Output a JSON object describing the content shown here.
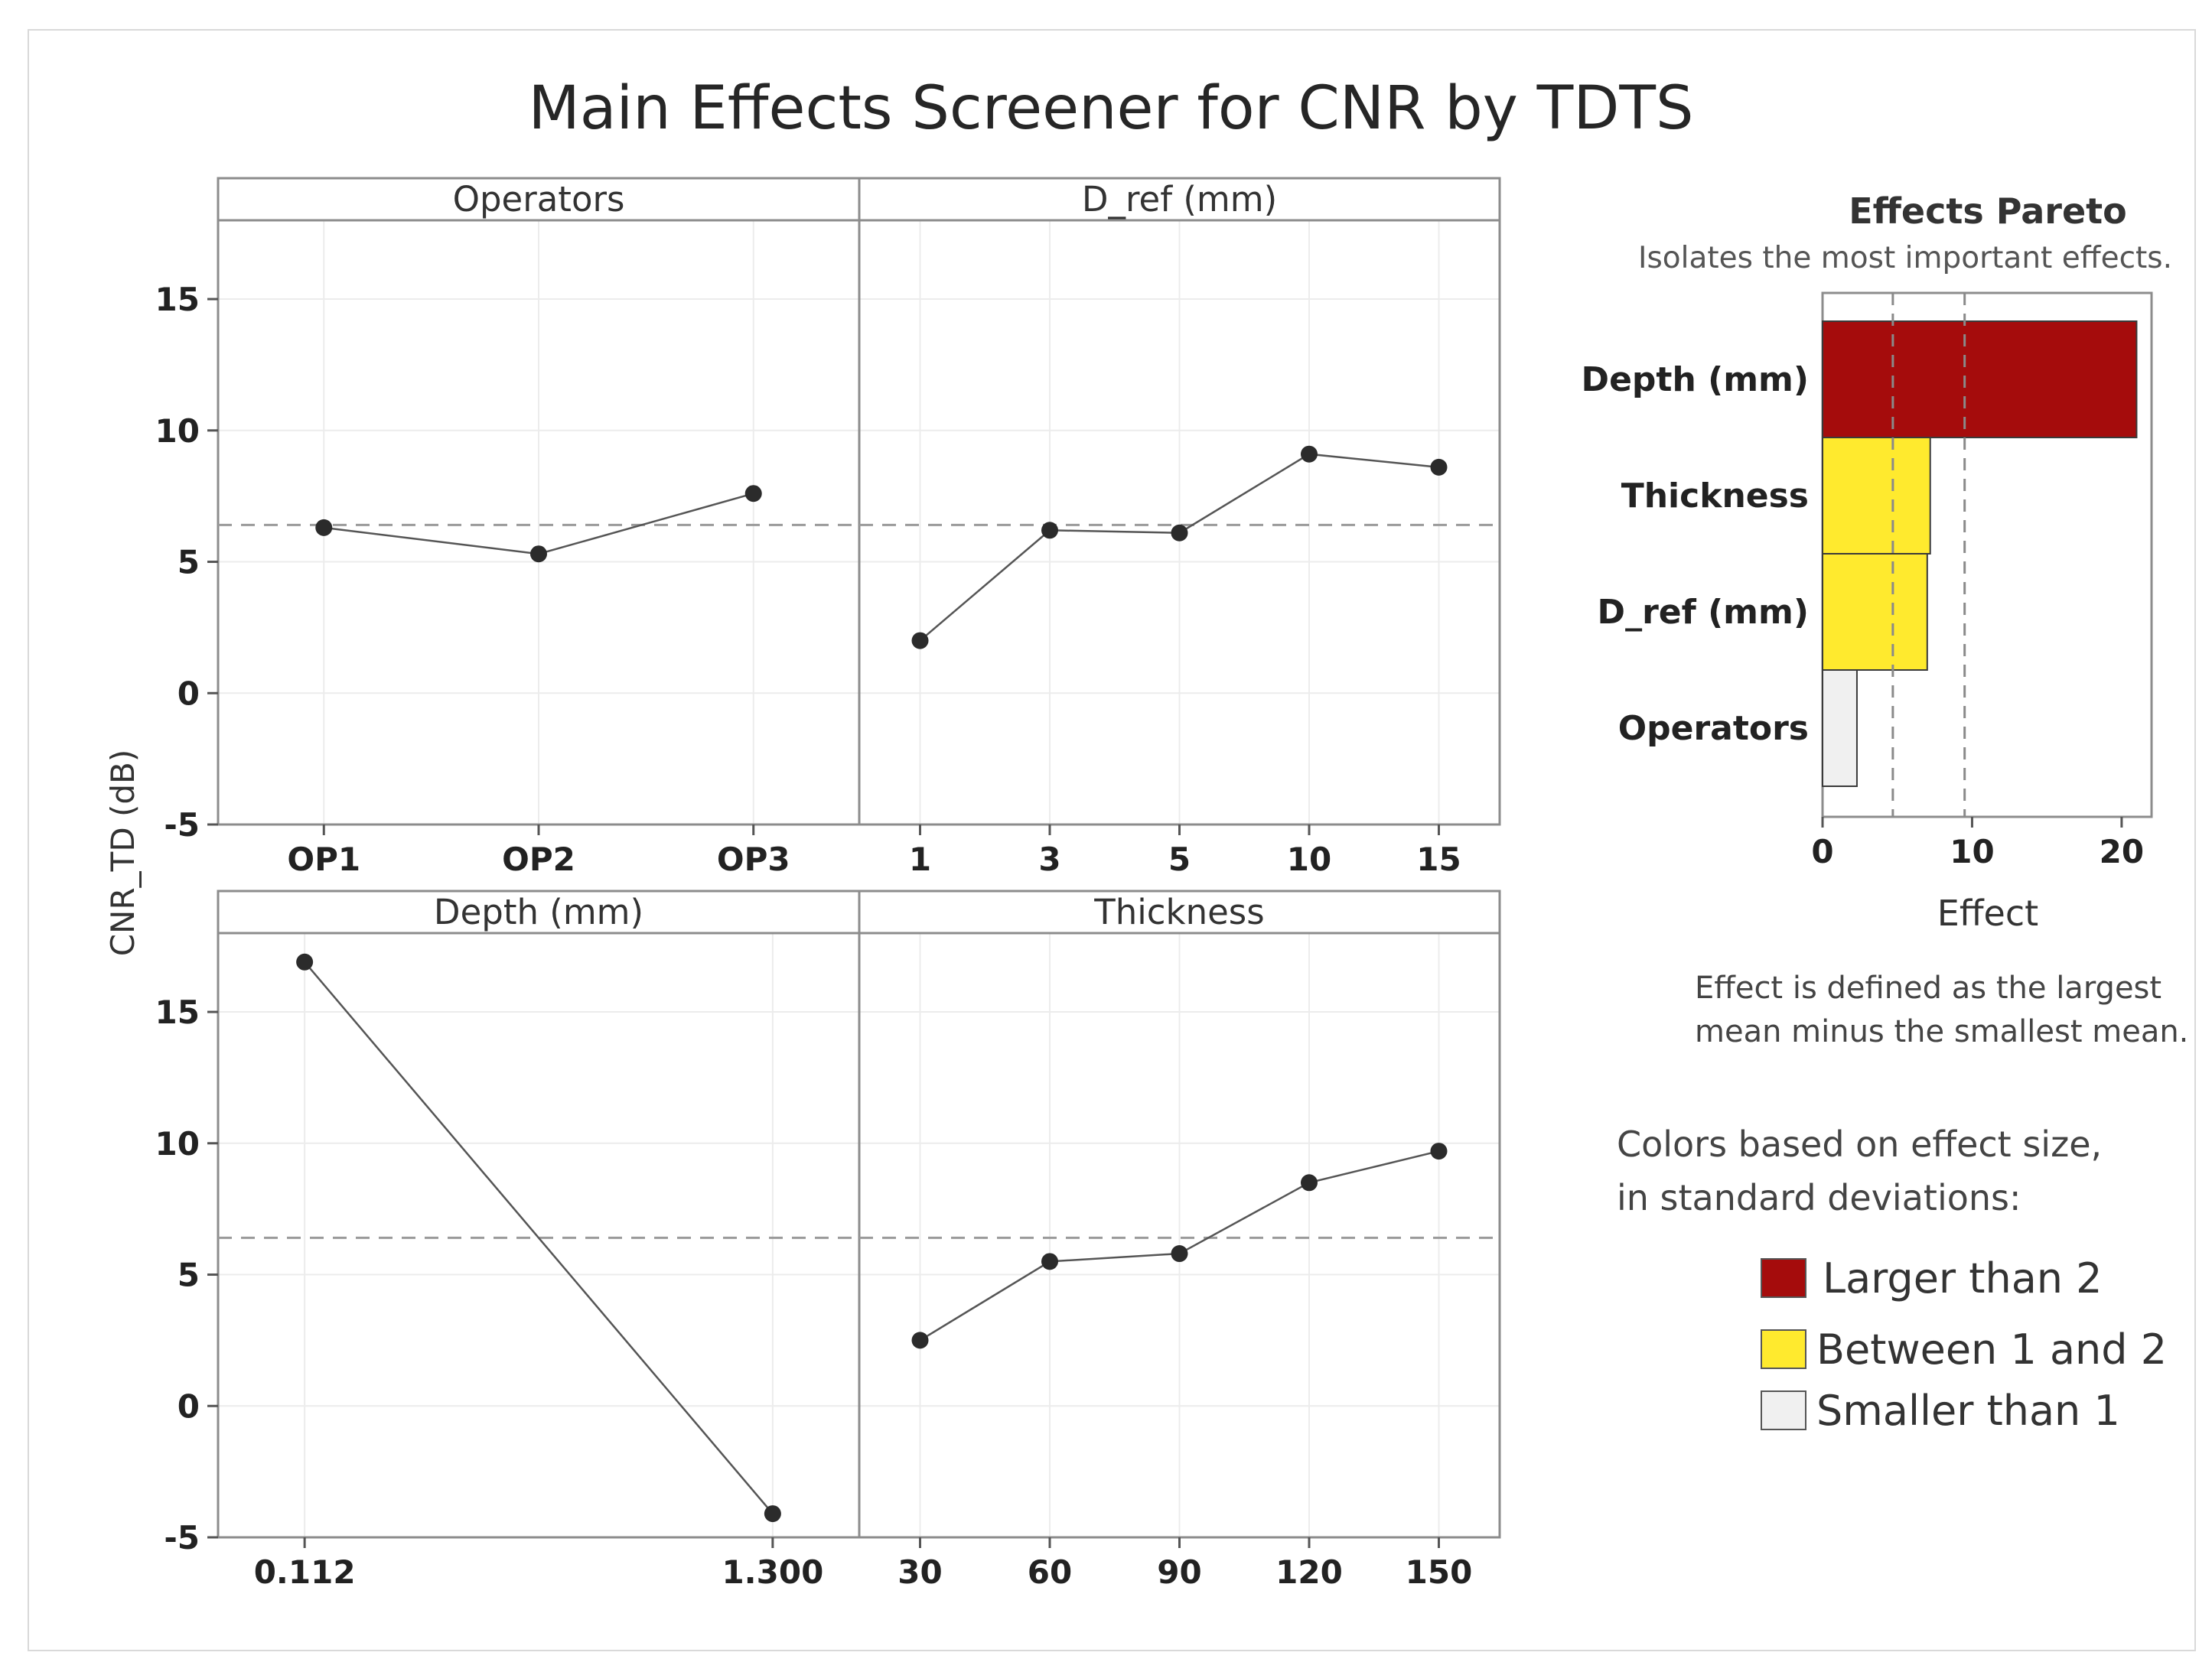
{
  "chart_data": {
    "type": "line",
    "title": "Main Effects Screener for CNR by TDTS",
    "ylabel": "CNR_TD (dB)",
    "ylim": [
      -5,
      18
    ],
    "yticks": [
      -5,
      0,
      5,
      10,
      15
    ],
    "overall_mean": 6.4,
    "panels": [
      {
        "name": "Operators",
        "categories": [
          "OP1",
          "OP2",
          "OP3"
        ],
        "values": [
          6.3,
          5.3,
          7.6
        ]
      },
      {
        "name": "D_ref (mm)",
        "categories": [
          "1",
          "3",
          "5",
          "10",
          "15"
        ],
        "values": [
          2.0,
          6.2,
          6.1,
          9.1,
          8.6
        ]
      },
      {
        "name": "Depth (mm)",
        "categories": [
          "0.112",
          "1.300"
        ],
        "values": [
          16.9,
          -4.1
        ]
      },
      {
        "name": "Thickness",
        "categories": [
          "30",
          "60",
          "90",
          "120",
          "150"
        ],
        "values": [
          2.5,
          5.5,
          5.8,
          8.5,
          9.7
        ]
      }
    ],
    "pareto": {
      "title": "Effects Pareto",
      "subtitle": "Isolates the most important effects.",
      "xlabel": "Effect",
      "xlim": [
        0,
        22
      ],
      "xticks": [
        0,
        10,
        20
      ],
      "reference_lines": [
        4.7,
        9.5
      ],
      "bars": [
        {
          "label": "Depth (mm)",
          "value": 21.0,
          "color": "#a50c0c"
        },
        {
          "label": "Thickness",
          "value": 7.2,
          "color": "#ffea2e"
        },
        {
          "label": "D_ref (mm)",
          "value": 7.0,
          "color": "#ffea2e"
        },
        {
          "label": "Operators",
          "value": 2.3,
          "color": "#f0f0f0"
        }
      ],
      "note_line1": "Effect is defined as the largest",
      "note_line2": "mean minus the smallest mean."
    },
    "legend": {
      "heading_line1": "Colors based on effect size,",
      "heading_line2": "in standard deviations:",
      "items": [
        {
          "label": "Larger than 2",
          "color": "#a50c0c"
        },
        {
          "label": "Between 1 and 2",
          "color": "#ffea2e"
        },
        {
          "label": "Smaller than 1",
          "color": "#f0f0f0"
        }
      ]
    }
  }
}
